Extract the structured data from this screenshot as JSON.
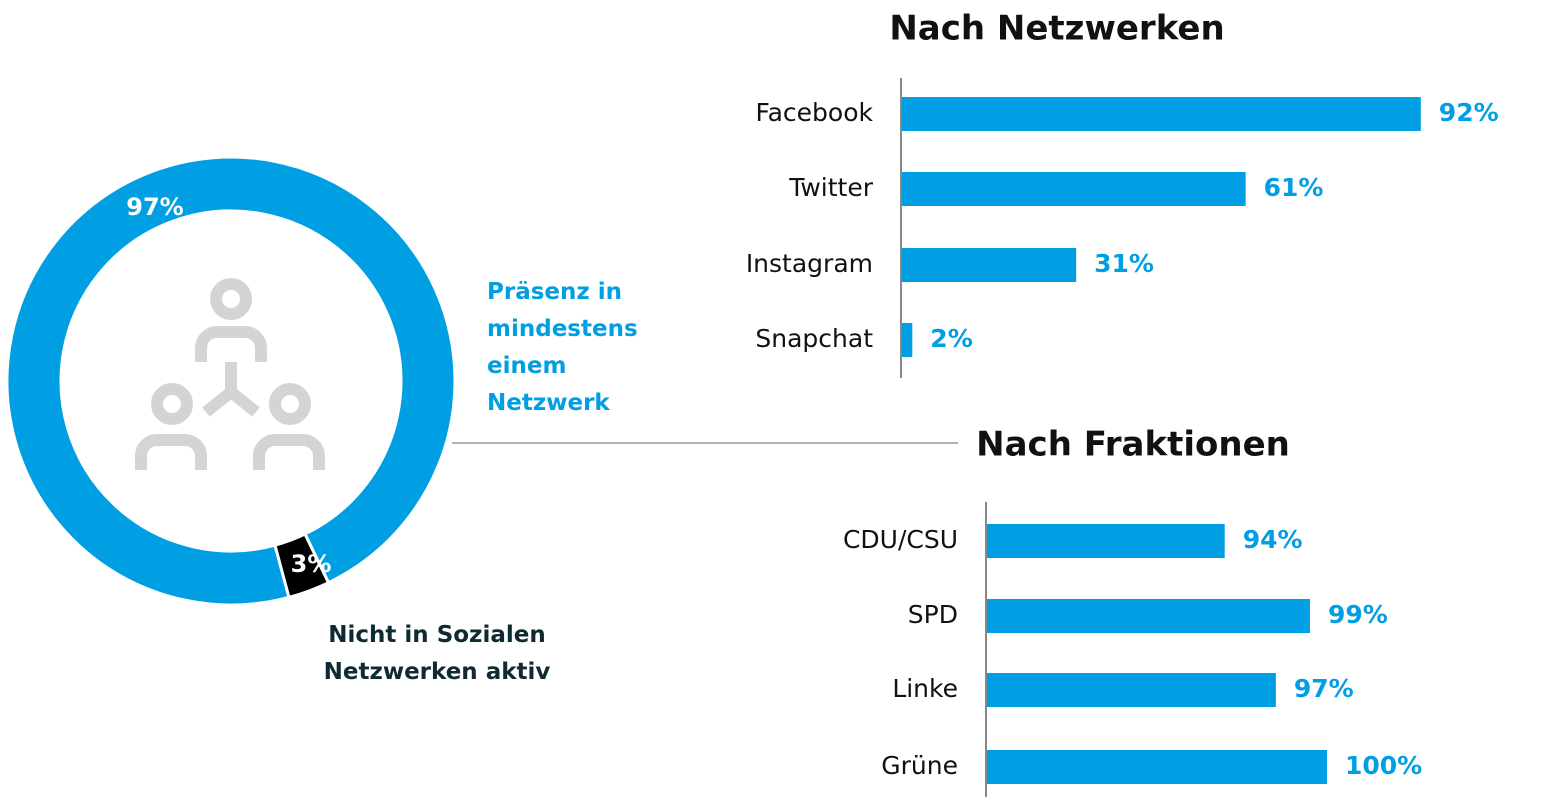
{
  "chart_data": [
    {
      "type": "donut",
      "categories": [
        "Präsenz in\nmindestens\neinem\nNetzwerk",
        "Nicht in Sozialen\nNetzwerken aktiv"
      ],
      "values": [
        97,
        3
      ],
      "value_labels": [
        "97%",
        "3%"
      ],
      "colors": [
        "#009fe3",
        "#000000"
      ]
    },
    {
      "type": "hbar",
      "title": "Nach Netzwerken",
      "categories": [
        "Facebook",
        "Twitter",
        "Instagram",
        "Snapchat"
      ],
      "values": [
        92,
        61,
        31,
        2
      ],
      "value_labels": [
        "92%",
        "61%",
        "31%",
        "2%"
      ],
      "color": "#009fe3",
      "xlim": [
        0,
        100
      ]
    },
    {
      "type": "hbar",
      "title": "Nach Fraktionen",
      "categories": [
        "CDU/CSU",
        "SPD",
        "Linke",
        "Grüne"
      ],
      "values": [
        94,
        99,
        97,
        100
      ],
      "value_labels": [
        "94%",
        "99%",
        "97%",
        "100%"
      ],
      "color": "#009fe3",
      "xlim": [
        80,
        100
      ]
    }
  ]
}
